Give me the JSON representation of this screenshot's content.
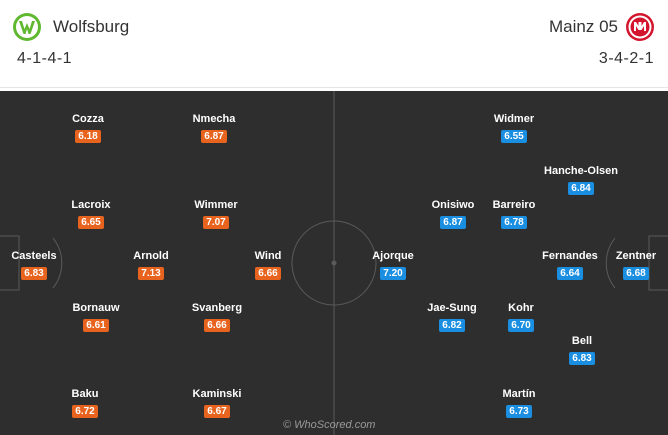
{
  "home": {
    "name": "Wolfsburg",
    "formation": "4-1-4-1",
    "logo_icon": "wolfsburg-crest-icon",
    "rating_color": "#e8641e"
  },
  "away": {
    "name": "Mainz 05",
    "formation": "3-4-2-1",
    "logo_icon": "mainz-crest-icon",
    "rating_color": "#1a8ee0"
  },
  "players": {
    "home": [
      {
        "name": "Cozza",
        "rating": "6.18"
      },
      {
        "name": "Nmecha",
        "rating": "6.87"
      },
      {
        "name": "Lacroix",
        "rating": "6.65"
      },
      {
        "name": "Wimmer",
        "rating": "7.07"
      },
      {
        "name": "Casteels",
        "rating": "6.83"
      },
      {
        "name": "Arnold",
        "rating": "7.13"
      },
      {
        "name": "Wind",
        "rating": "6.66"
      },
      {
        "name": "Bornauw",
        "rating": "6.61"
      },
      {
        "name": "Svanberg",
        "rating": "6.66"
      },
      {
        "name": "Baku",
        "rating": "6.72"
      },
      {
        "name": "Kaminski",
        "rating": "6.67"
      }
    ],
    "away": [
      {
        "name": "Widmer",
        "rating": "6.55"
      },
      {
        "name": "Hanche-Olsen",
        "rating": "6.84"
      },
      {
        "name": "Onisiwo",
        "rating": "6.87"
      },
      {
        "name": "Barreiro",
        "rating": "6.78"
      },
      {
        "name": "Ajorque",
        "rating": "7.20"
      },
      {
        "name": "Fernandes",
        "rating": "6.64"
      },
      {
        "name": "Zentner",
        "rating": "6.68"
      },
      {
        "name": "Jae-Sung",
        "rating": "6.82"
      },
      {
        "name": "Kohr",
        "rating": "6.70"
      },
      {
        "name": "Bell",
        "rating": "6.83"
      },
      {
        "name": "Martín",
        "rating": "6.73"
      }
    ]
  },
  "watermark": "© WhoScored.com"
}
